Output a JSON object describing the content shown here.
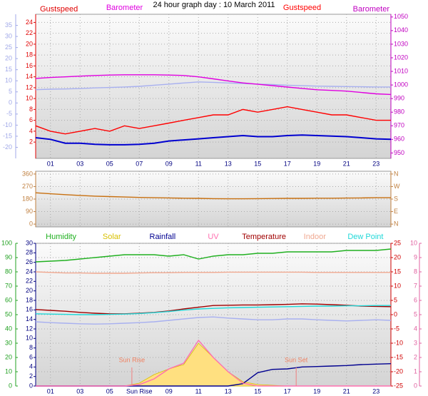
{
  "chart_data": [
    {
      "type": "line",
      "title": "24 hour graph day : 10 March 2011",
      "grid": true,
      "x": [
        0,
        1,
        2,
        3,
        4,
        5,
        6,
        7,
        8,
        9,
        10,
        11,
        12,
        13,
        14,
        15,
        16,
        17,
        18,
        19,
        20,
        21,
        22,
        23,
        24
      ],
      "xlim": [
        0,
        24
      ],
      "xticks": [
        {
          "value": 1,
          "label": "01"
        },
        {
          "value": 3,
          "label": "03"
        },
        {
          "value": 5,
          "label": "05"
        },
        {
          "value": 7,
          "label": "07"
        },
        {
          "value": 9,
          "label": "09"
        },
        {
          "value": 11,
          "label": "11"
        },
        {
          "value": 13,
          "label": "13"
        },
        {
          "value": 15,
          "label": "15"
        },
        {
          "value": 17,
          "label": "17"
        },
        {
          "value": 19,
          "label": "19"
        },
        {
          "value": 21,
          "label": "21"
        },
        {
          "value": 23,
          "label": "23"
        }
      ],
      "axes": [
        {
          "side": "left",
          "name": "Gustspeed",
          "color": "#e00000",
          "lim": [
            -1,
            25.5
          ],
          "ticks": [
            2,
            4,
            6,
            8,
            10,
            12,
            14,
            16,
            18,
            20,
            22,
            24
          ]
        },
        {
          "side": "left-outer",
          "color": "#a0a8e8",
          "lim": [
            -25,
            40
          ],
          "ticks": [
            35,
            30,
            25,
            20,
            15,
            10,
            5,
            0,
            -5,
            -10,
            -15,
            -20
          ]
        },
        {
          "side": "right",
          "name": "Barometer",
          "color": "#c000c0",
          "lim": [
            946,
            1052
          ],
          "ticks": [
            950,
            960,
            970,
            980,
            990,
            1000,
            1010,
            1020,
            1030,
            1040,
            1050
          ]
        }
      ],
      "series": [
        {
          "color": "#a8b0f0",
          "axis": 1,
          "values": [
            6,
            6.2,
            6.3,
            6.5,
            6.8,
            7,
            7.2,
            7.5,
            8,
            8.5,
            9,
            9.5,
            9.3,
            9,
            8.8,
            8.5,
            8.3,
            8,
            7.8,
            7.6,
            7.5,
            7.4,
            7.3,
            7.2,
            7.2
          ]
        },
        {
          "name": "Barometer",
          "color": "#e000e0",
          "axis": 2,
          "values": [
            1004.8,
            1005.5,
            1006,
            1006.5,
            1007,
            1007.3,
            1007.5,
            1007.5,
            1007.5,
            1007.3,
            1007,
            1006,
            1004.5,
            1003,
            1001.5,
            1000.5,
            999.5,
            998.5,
            997.5,
            996.5,
            996,
            995.5,
            994.5,
            993.5,
            993
          ]
        },
        {
          "name": "Gustspeed",
          "color": "#ff0000",
          "axis": 0,
          "values": [
            5,
            4,
            3.5,
            4,
            4.5,
            4,
            5,
            4.5,
            5,
            5.5,
            6,
            6.5,
            7,
            7,
            8,
            7.5,
            8,
            8.5,
            8,
            7.5,
            7,
            7,
            6.5,
            6,
            6
          ]
        },
        {
          "color": "#0000d0",
          "axis": 0,
          "values": [
            2.8,
            2.5,
            1.8,
            1.8,
            1.6,
            1.5,
            1.5,
            1.6,
            1.8,
            2.2,
            2.4,
            2.6,
            2.8,
            3,
            3.2,
            3,
            3,
            3.2,
            3.3,
            3.2,
            3.1,
            3,
            2.8,
            2.6,
            2.5
          ]
        }
      ]
    },
    {
      "type": "line",
      "grid": true,
      "x": [
        0,
        1,
        2,
        3,
        4,
        5,
        6,
        7,
        8,
        9,
        10,
        11,
        12,
        13,
        14,
        15,
        16,
        17,
        18,
        19,
        20,
        21,
        22,
        23,
        24
      ],
      "xlim": [
        0,
        24
      ],
      "axes": [
        {
          "side": "left",
          "color": "#c08040",
          "lim": [
            -20,
            380
          ],
          "ticks": [
            0,
            90,
            180,
            270,
            360
          ]
        },
        {
          "side": "right",
          "color": "#c08040",
          "lim": [
            -20,
            380
          ],
          "ticks": [
            {
              "value": 360,
              "label": "N"
            },
            {
              "value": 270,
              "label": "W"
            },
            {
              "value": 180,
              "label": "S"
            },
            {
              "value": 90,
              "label": "E"
            },
            {
              "value": 0,
              "label": "N"
            }
          ]
        }
      ],
      "series": [
        {
          "color": "#c87010",
          "axis": 0,
          "values": [
            225,
            218,
            212,
            206,
            201,
            198,
            195,
            192,
            190,
            188,
            186,
            185,
            183,
            182,
            182,
            183,
            184,
            185,
            185,
            186,
            186,
            187,
            188,
            190,
            190
          ]
        }
      ]
    },
    {
      "type": "line",
      "grid": true,
      "x": [
        0,
        1,
        2,
        3,
        4,
        5,
        6,
        7,
        8,
        9,
        10,
        11,
        12,
        13,
        14,
        15,
        16,
        17,
        18,
        19,
        20,
        21,
        22,
        23,
        24
      ],
      "xlim": [
        0,
        24
      ],
      "xticks": [
        {
          "value": 1,
          "label": "01"
        },
        {
          "value": 3,
          "label": "03"
        },
        {
          "value": 5,
          "label": "05"
        },
        {
          "value": 7,
          "label": "Sun Rise"
        },
        {
          "value": 9,
          "label": "09"
        },
        {
          "value": 11,
          "label": "11"
        },
        {
          "value": 13,
          "label": "13"
        },
        {
          "value": 15,
          "label": "15"
        },
        {
          "value": 17,
          "label": "17"
        },
        {
          "value": 19,
          "label": "19"
        },
        {
          "value": 21,
          "label": "21"
        },
        {
          "value": 23,
          "label": "23"
        }
      ],
      "axes": [
        {
          "side": "left-outer",
          "color": "#20a020",
          "lim": [
            0,
            100
          ],
          "ticks": [
            0,
            10,
            20,
            30,
            40,
            50,
            60,
            70,
            80,
            90,
            100
          ]
        },
        {
          "side": "left",
          "color": "#000080",
          "lim": [
            0,
            30
          ],
          "ticks": [
            0,
            2,
            4,
            6,
            8,
            10,
            12,
            14,
            16,
            18,
            20,
            22,
            24,
            26,
            28,
            30
          ]
        },
        {
          "side": "right",
          "color": "#d00000",
          "lim": [
            -25,
            25
          ],
          "ticks": [
            25,
            20,
            15,
            10,
            5,
            0,
            -5,
            -10,
            -15,
            -20,
            -25
          ]
        },
        {
          "side": "right-outer",
          "color": "#e060a0",
          "lim": [
            0,
            10
          ],
          "ticks": [
            0,
            1,
            2,
            3,
            4,
            5,
            6,
            7,
            8,
            9,
            10
          ]
        }
      ],
      "series": [
        {
          "name": "Humidity",
          "color": "#20b020",
          "axis": 0,
          "values": [
            87,
            87.5,
            88,
            89,
            90,
            91,
            92,
            92,
            92,
            91,
            92,
            89,
            91,
            92,
            92,
            93,
            93,
            94,
            94,
            94,
            94,
            95,
            95,
            95,
            96
          ]
        },
        {
          "name": "Solar",
          "color": "#d8c000",
          "fill": "#ffe080",
          "style": "area",
          "axis": 0,
          "values": [
            0,
            0,
            0,
            0,
            0,
            0,
            0,
            2,
            8,
            12,
            15,
            30,
            20,
            10,
            3,
            1,
            0.5,
            0,
            0,
            0,
            0,
            0,
            0,
            0,
            0
          ]
        },
        {
          "name": "Rainfall",
          "color": "#000090",
          "axis": 1,
          "values": [
            0,
            0,
            0,
            0,
            0,
            0,
            0,
            0,
            0,
            0,
            0,
            0,
            0,
            0,
            0.5,
            2.8,
            3.5,
            3.6,
            4,
            4.1,
            4.2,
            4.3,
            4.5,
            4.6,
            4.7
          ]
        },
        {
          "name": "UV",
          "color": "#ff70b0",
          "axis": 3,
          "values": [
            0,
            0,
            0,
            0,
            0,
            0,
            0,
            0.1,
            0.5,
            1.2,
            1.6,
            3.2,
            2,
            1,
            0.2,
            0,
            0,
            0,
            0,
            0,
            0,
            0,
            0,
            0,
            0
          ]
        },
        {
          "name": "Temperature",
          "color": "#a00000",
          "axis": 2,
          "values": [
            1.8,
            1.5,
            1.2,
            0.8,
            0.5,
            0.3,
            0.3,
            0.5,
            0.8,
            1.3,
            2,
            2.6,
            3.2,
            3.3,
            3.4,
            3.4,
            3.5,
            3.6,
            3.8,
            3.7,
            3.5,
            3.3,
            3,
            2.9,
            2.8
          ]
        },
        {
          "name": "Indoor",
          "color": "#f0a890",
          "axis": 2,
          "values": [
            15,
            14.8,
            14.6,
            14.6,
            14.5,
            14.5,
            14.5,
            14.6,
            14.7,
            14.7,
            14.8,
            14.8,
            14.8,
            14.9,
            14.9,
            14.9,
            14.9,
            14.9,
            14.9,
            14.8,
            14.8,
            14.8,
            14.8,
            14.8,
            14.8
          ]
        },
        {
          "name": "Dew Point",
          "color": "#20d8d8",
          "axis": 2,
          "values": [
            0.3,
            0.2,
            0.1,
            0,
            0,
            0.1,
            0.2,
            0.4,
            0.7,
            1.1,
            1.6,
            2,
            2.2,
            2.4,
            2.5,
            2.6,
            2.7,
            2.8,
            2.9,
            3,
            3,
            3.1,
            3.1,
            3.2,
            3.2
          ]
        },
        {
          "color": "#a8b0f0",
          "axis": 2,
          "values": [
            -2.5,
            -2.8,
            -3,
            -3.2,
            -3.3,
            -3.2,
            -3,
            -2.8,
            -2.5,
            -2,
            -1.5,
            -1,
            -0.8,
            -1.2,
            -1.5,
            -1.8,
            -1.8,
            -1.5,
            -1.5,
            -1.8,
            -2,
            -2.2,
            -2,
            -1.8,
            -2
          ]
        }
      ],
      "annotations": [
        {
          "text": "Sun Rise",
          "x": 6.5
        },
        {
          "text": "Sun Set",
          "x": 17.6
        }
      ]
    }
  ]
}
